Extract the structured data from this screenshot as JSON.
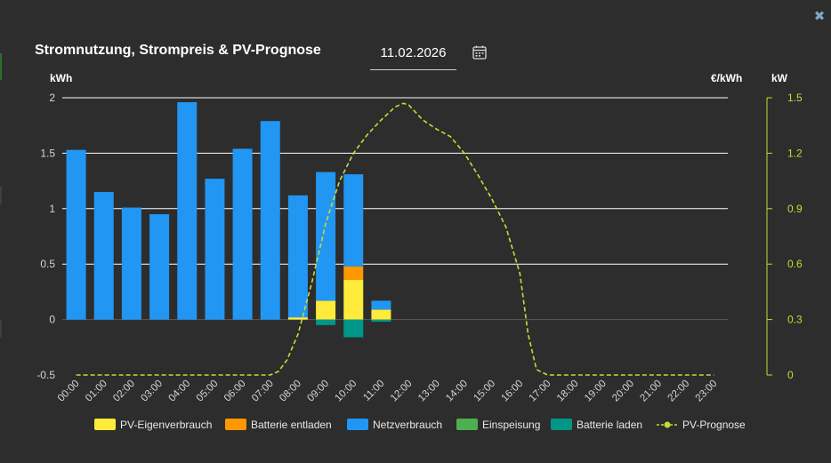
{
  "header": {
    "title": "Stromnutzung, Strompreis & PV-Prognose",
    "date_value": "11.02.2026",
    "close_icon": "close-icon",
    "calendar_icon": "calendar-icon"
  },
  "colors": {
    "pv_eigen": "#ffeb3b",
    "batterie_entladen": "#ff9800",
    "netz": "#2196f3",
    "einspeisung": "#4caf50",
    "batterie_laden": "#009688",
    "pv_prognose": "#c6dc32",
    "grid": "#ffffff",
    "zero_line": "#5a5a5a",
    "axis_text": "#cfcfcf"
  },
  "chart_data": {
    "type": "bar",
    "units": {
      "left": "kWh",
      "middle": "€/kWh",
      "right": "kW"
    },
    "categories": [
      "00:00",
      "01:00",
      "02:00",
      "03:00",
      "04:00",
      "05:00",
      "06:00",
      "07:00",
      "08:00",
      "09:00",
      "10:00",
      "11:00",
      "12:00",
      "13:00",
      "14:00",
      "15:00",
      "16:00",
      "17:00",
      "18:00",
      "19:00",
      "20:00",
      "21:00",
      "22:00",
      "23:00"
    ],
    "y_left": {
      "range": [
        -0.5,
        2
      ],
      "ticks": [
        "2",
        "1.5",
        "1",
        "0.5",
        "0",
        "-0.5"
      ],
      "tick_values": [
        2,
        1.5,
        1,
        0.5,
        0,
        -0.5
      ]
    },
    "y_right": {
      "range": [
        0,
        1.5
      ],
      "ticks": [
        "1.5",
        "1.2",
        "0.9",
        "0.6",
        "0.3",
        "0"
      ],
      "tick_values": [
        1.5,
        1.2,
        0.9,
        0.6,
        0.3,
        0
      ]
    },
    "series": [
      {
        "key": "pv_eigen",
        "name": "PV-Eigenverbrauch",
        "stack": "pos",
        "values": [
          0,
          0,
          0,
          0,
          0,
          0,
          0,
          0,
          0.02,
          0.17,
          0.36,
          0.09,
          0,
          0,
          0,
          0,
          0,
          0,
          0,
          0,
          0,
          0,
          0,
          0
        ]
      },
      {
        "key": "batterie_entladen",
        "name": "Batterie entladen",
        "stack": "pos",
        "values": [
          0,
          0,
          0,
          0,
          0,
          0,
          0,
          0,
          0,
          0,
          0.12,
          0,
          0,
          0,
          0,
          0,
          0,
          0,
          0,
          0,
          0,
          0,
          0,
          0
        ]
      },
      {
        "key": "netz",
        "name": "Netzverbrauch",
        "stack": "pos",
        "values": [
          1.53,
          1.15,
          1.01,
          0.95,
          1.96,
          1.27,
          1.54,
          1.79,
          1.1,
          1.16,
          0.83,
          0.08,
          0,
          0,
          0,
          0,
          0,
          0,
          0,
          0,
          0,
          0,
          0,
          0
        ]
      },
      {
        "key": "einspeisung",
        "name": "Einspeisung",
        "stack": "neg",
        "values": [
          0,
          0,
          0,
          0,
          0,
          0,
          0,
          0,
          0,
          0,
          0,
          0,
          0,
          0,
          0,
          0,
          0,
          0,
          0,
          0,
          0,
          0,
          0,
          0
        ]
      },
      {
        "key": "batterie_laden",
        "name": "Batterie laden",
        "stack": "neg",
        "values": [
          0,
          0,
          0,
          0,
          0,
          0,
          0,
          0,
          0,
          -0.05,
          -0.16,
          -0.02,
          0,
          0,
          0,
          0,
          0,
          0,
          0,
          0,
          0,
          0,
          0,
          0
        ]
      }
    ],
    "line": {
      "name": "PV-Prognose",
      "axis": "right",
      "x": [
        0,
        1,
        2,
        3,
        4,
        5,
        6,
        7,
        7.3,
        7.6,
        8,
        8.5,
        9,
        9.5,
        10,
        10.5,
        11,
        11.5,
        11.8,
        12,
        12.5,
        13,
        13.5,
        14,
        14.5,
        15,
        15.5,
        16,
        16.3,
        16.6,
        17,
        18,
        19,
        20,
        21,
        22,
        23
      ],
      "y": [
        0,
        0,
        0,
        0,
        0,
        0,
        0,
        0,
        0.02,
        0.08,
        0.22,
        0.5,
        0.82,
        1.05,
        1.2,
        1.3,
        1.38,
        1.45,
        1.47,
        1.46,
        1.38,
        1.33,
        1.29,
        1.2,
        1.08,
        0.95,
        0.8,
        0.55,
        0.22,
        0.03,
        0,
        0,
        0,
        0,
        0,
        0,
        0
      ]
    },
    "legend": [
      {
        "key": "pv_eigen",
        "label": "PV-Eigenverbrauch",
        "kind": "box"
      },
      {
        "key": "batterie_entladen",
        "label": "Batterie entladen",
        "kind": "box"
      },
      {
        "key": "netz",
        "label": "Netzverbrauch",
        "kind": "box"
      },
      {
        "key": "einspeisung",
        "label": "Einspeisung",
        "kind": "box"
      },
      {
        "key": "batterie_laden",
        "label": "Batterie laden",
        "kind": "box"
      },
      {
        "key": "pv_prognose",
        "label": "PV-Prognose",
        "kind": "line"
      }
    ],
    "legend_position": "bottom-center",
    "grid": true
  }
}
